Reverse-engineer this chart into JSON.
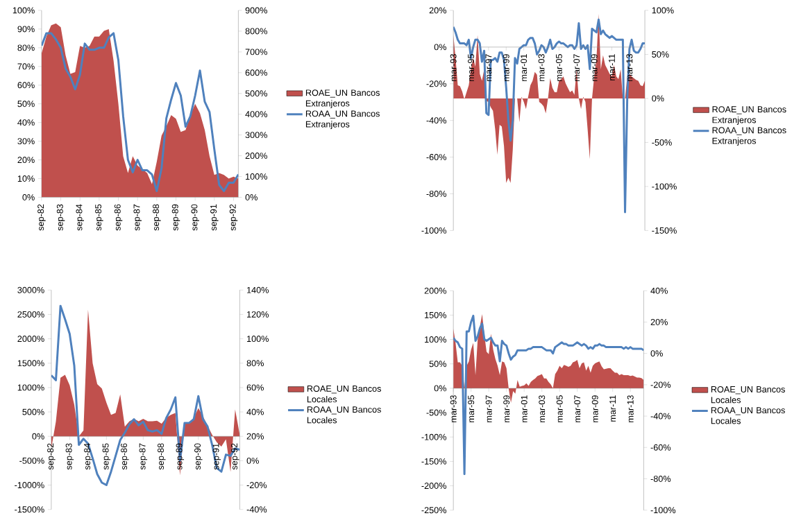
{
  "chart_data": [
    {
      "type": "area",
      "legend": "right",
      "categories": [
        "sep-82",
        null,
        null,
        null,
        "sep-83",
        null,
        null,
        null,
        "sep-84",
        null,
        null,
        null,
        "sep-85",
        null,
        null,
        null,
        "sep-86",
        null,
        null,
        null,
        "sep-87",
        null,
        null,
        null,
        "sep-88",
        null,
        null,
        null,
        "sep-89",
        null,
        null,
        null,
        "sep-90",
        null,
        null,
        null,
        "sep-91",
        null,
        null,
        null,
        "sep-92",
        null
      ],
      "ylim": [
        0,
        100
      ],
      "yticks": [
        {
          "value": 0,
          "label": "0%"
        },
        {
          "value": 10,
          "label": "10%"
        },
        {
          "value": 20,
          "label": "20%"
        },
        {
          "value": 30,
          "label": "30%"
        },
        {
          "value": 40,
          "label": "40%"
        },
        {
          "value": 50,
          "label": "50%"
        },
        {
          "value": 60,
          "label": "60%"
        },
        {
          "value": 70,
          "label": "70%"
        },
        {
          "value": 80,
          "label": "80%"
        },
        {
          "value": 90,
          "label": "90%"
        },
        {
          "value": 100,
          "label": "100%"
        }
      ],
      "y2lim": [
        0,
        900
      ],
      "y2ticks": [
        {
          "value": 0,
          "label": "0%"
        },
        {
          "value": 100,
          "label": "100%"
        },
        {
          "value": 200,
          "label": "200%"
        },
        {
          "value": 300,
          "label": "300%"
        },
        {
          "value": 400,
          "label": "400%"
        },
        {
          "value": 500,
          "label": "500%"
        },
        {
          "value": 600,
          "label": "600%"
        },
        {
          "value": 700,
          "label": "700%"
        },
        {
          "value": 800,
          "label": "800%"
        },
        {
          "value": 900,
          "label": "900%"
        }
      ],
      "series": [
        {
          "name": "ROAE_UN Bancos Extranjeros",
          "color": "#c0504d",
          "values": [
            77,
            86,
            92,
            93,
            91,
            76,
            66,
            67,
            81,
            80,
            81,
            86,
            86,
            89,
            90,
            73,
            50,
            22,
            13,
            22,
            17,
            15,
            13,
            7,
            19,
            33,
            38,
            44,
            42,
            35,
            36,
            44,
            50,
            45,
            36,
            22,
            12,
            13,
            12,
            10,
            11,
            10
          ]
        },
        {
          "name": "ROAA_UN Bancos Extranjeros",
          "type": "line",
          "axis": "y2",
          "color": "#4f81bd",
          "values": [
            730,
            790,
            790,
            760,
            720,
            620,
            580,
            520,
            590,
            740,
            710,
            710,
            720,
            720,
            770,
            790,
            660,
            390,
            180,
            120,
            180,
            130,
            130,
            110,
            30,
            140,
            380,
            470,
            550,
            490,
            340,
            390,
            490,
            610,
            460,
            410,
            230,
            60,
            30,
            70,
            70,
            110
          ]
        }
      ]
    },
    {
      "type": "area",
      "legend": "right",
      "categories": [
        "mar-93",
        null,
        null,
        null,
        null,
        null,
        null,
        null,
        "mar-95",
        null,
        null,
        null,
        null,
        null,
        null,
        null,
        "mar-97",
        null,
        null,
        null,
        null,
        null,
        null,
        null,
        "mar-99",
        null,
        null,
        null,
        null,
        null,
        null,
        null,
        "mar-01",
        null,
        null,
        null,
        null,
        null,
        null,
        null,
        "mar-03",
        null,
        null,
        null,
        null,
        null,
        null,
        null,
        "mar-05",
        null,
        null,
        null,
        null,
        null,
        null,
        null,
        "mar-07",
        null,
        null,
        null,
        null,
        null,
        null,
        null,
        "mar-09",
        null,
        null,
        null,
        null,
        null,
        null,
        null,
        "mar-11",
        null,
        null,
        null,
        null,
        null,
        null,
        null,
        "mar-13",
        null,
        null,
        null,
        null,
        null,
        null,
        null
      ],
      "ylim": [
        -100,
        20
      ],
      "yticks": [
        {
          "value": -100,
          "label": "-100%"
        },
        {
          "value": -80,
          "label": "-80%"
        },
        {
          "value": -60,
          "label": "-60%"
        },
        {
          "value": -40,
          "label": "-40%"
        },
        {
          "value": -20,
          "label": "-20%"
        },
        {
          "value": 0,
          "label": "0%"
        },
        {
          "value": 20,
          "label": "20%"
        }
      ],
      "y2lim": [
        -150,
        100
      ],
      "y2ticks": [
        {
          "value": -150,
          "label": "-150%"
        },
        {
          "value": -100,
          "label": "-100%"
        },
        {
          "value": -50,
          "label": "-50%"
        },
        {
          "value": 0,
          "label": "0%"
        },
        {
          "value": 50,
          "label": "50%"
        },
        {
          "value": 100,
          "label": "100%"
        }
      ],
      "series": [
        {
          "name": "ROAE_UN Bancos Extranjeros",
          "axis": "y2",
          "color": "#c0504d",
          "values": [
            72,
            46,
            15,
            14,
            8,
            -1,
            7,
            15,
            33,
            46,
            36,
            72,
            28,
            20,
            33,
            -3,
            -4,
            -10,
            -14,
            -35,
            -64,
            -30,
            -32,
            -54,
            -96,
            -90,
            -96,
            -58,
            0,
            0,
            -27,
            2,
            -4,
            -12,
            2,
            15,
            20,
            30,
            27,
            -4,
            -6,
            -9,
            -17,
            0,
            23,
            12,
            7,
            7,
            20,
            22,
            25,
            17,
            12,
            7,
            9,
            4,
            33,
            0,
            -12,
            2,
            -4,
            -35,
            -69,
            0,
            25,
            44,
            96,
            33,
            49,
            38,
            33,
            28,
            25,
            38,
            25,
            22,
            33,
            0,
            0,
            25,
            28,
            25,
            23,
            21,
            20,
            15,
            14,
            20
          ]
        },
        {
          "name": "ROAA_UN Bancos Extranjeros",
          "type": "line",
          "color": "#4f81bd",
          "values": [
            11,
            8,
            4,
            2,
            2,
            2,
            1,
            4,
            -6,
            0,
            4,
            4,
            2,
            -8,
            -2,
            -36,
            -37,
            -7,
            -7,
            -6,
            -8,
            -3,
            -3,
            -7,
            -22,
            -40,
            -51,
            -40,
            -6,
            -9,
            -1,
            0,
            1,
            1,
            4,
            5,
            5,
            2,
            -4,
            -2,
            1,
            0,
            -3,
            0,
            4,
            -1,
            0,
            2,
            3,
            2,
            2,
            1,
            0,
            1,
            1,
            -1,
            1,
            13,
            -1,
            1,
            -1,
            1,
            -12,
            10,
            9,
            8,
            15,
            7,
            9,
            7,
            6,
            5,
            6,
            5,
            4,
            4,
            4,
            4,
            -90,
            -28,
            -1,
            4,
            -2,
            -3,
            -3,
            -1,
            2,
            2
          ]
        }
      ]
    },
    {
      "type": "area",
      "legend": "right",
      "categories": [
        "sep-82",
        null,
        null,
        null,
        "sep-83",
        null,
        null,
        null,
        "sep-84",
        null,
        null,
        null,
        "sep-85",
        null,
        null,
        null,
        "sep-86",
        null,
        null,
        null,
        "sep-87",
        null,
        null,
        null,
        "sep-88",
        null,
        null,
        null,
        "sep-89",
        null,
        null,
        null,
        "sep-90",
        null,
        null,
        null,
        "sep-91",
        null,
        null,
        null,
        "sep-92",
        null
      ],
      "ylim": [
        -1500,
        3000
      ],
      "yticks": [
        {
          "value": -1500,
          "label": "-1500%"
        },
        {
          "value": -1000,
          "label": "-1000%"
        },
        {
          "value": -500,
          "label": "-500%"
        },
        {
          "value": 0,
          "label": "0%"
        },
        {
          "value": 500,
          "label": "500%"
        },
        {
          "value": 1000,
          "label": "1000%"
        },
        {
          "value": 1500,
          "label": "1500%"
        },
        {
          "value": 2000,
          "label": "2000%"
        },
        {
          "value": 2500,
          "label": "2500%"
        },
        {
          "value": 3000,
          "label": "3000%"
        }
      ],
      "y2lim": [
        -40,
        140
      ],
      "y2ticks": [
        {
          "value": -40,
          "label": "-40%"
        },
        {
          "value": -20,
          "label": "-20%"
        },
        {
          "value": 0,
          "label": "0%"
        },
        {
          "value": 20,
          "label": "20%"
        },
        {
          "value": 40,
          "label": "40%"
        },
        {
          "value": 60,
          "label": "60%"
        },
        {
          "value": 80,
          "label": "80%"
        },
        {
          "value": 100,
          "label": "100%"
        },
        {
          "value": 120,
          "label": "120%"
        },
        {
          "value": 140,
          "label": "140%"
        }
      ],
      "series": [
        {
          "name": "ROAE_UN Bancos Locales",
          "color": "#c0504d",
          "values": [
            -250,
            300,
            1200,
            1260,
            1050,
            650,
            0,
            120,
            2600,
            1500,
            1070,
            980,
            690,
            440,
            480,
            860,
            200,
            310,
            360,
            310,
            360,
            310,
            310,
            320,
            260,
            380,
            440,
            480,
            -800,
            260,
            290,
            380,
            580,
            410,
            220,
            30,
            -120,
            -210,
            -60,
            -730,
            550,
            30
          ]
        },
        {
          "name": "ROAA_UN Bancos Locales",
          "type": "line",
          "axis": "y2",
          "color": "#4f81bd",
          "values": [
            70,
            66,
            127,
            116,
            104,
            78,
            13,
            18,
            14,
            2,
            -11,
            -18,
            -20,
            -9,
            4,
            17,
            23,
            30,
            34,
            29,
            32,
            25,
            24,
            25,
            22,
            35,
            42,
            52,
            0,
            31,
            31,
            34,
            53,
            34,
            28,
            13,
            -6,
            -9,
            5,
            4,
            10,
            9
          ]
        }
      ]
    },
    {
      "type": "area",
      "legend": "right",
      "categories": [
        "mar-93",
        null,
        null,
        null,
        null,
        null,
        null,
        null,
        "mar-95",
        null,
        null,
        null,
        null,
        null,
        null,
        null,
        "mar-97",
        null,
        null,
        null,
        null,
        null,
        null,
        null,
        "mar-99",
        null,
        null,
        null,
        null,
        null,
        null,
        null,
        "mar-01",
        null,
        null,
        null,
        null,
        null,
        null,
        null,
        "mar-03",
        null,
        null,
        null,
        null,
        null,
        null,
        null,
        "mar-05",
        null,
        null,
        null,
        null,
        null,
        null,
        null,
        "mar-07",
        null,
        null,
        null,
        null,
        null,
        null,
        null,
        "mar-09",
        null,
        null,
        null,
        null,
        null,
        null,
        null,
        "mar-11",
        null,
        null,
        null,
        null,
        null,
        null,
        null,
        "mar-13",
        null,
        null,
        null,
        null,
        null,
        null
      ],
      "ylim": [
        -250,
        200
      ],
      "yticks": [
        {
          "value": -250,
          "label": "-250%"
        },
        {
          "value": -200,
          "label": "-200%"
        },
        {
          "value": -150,
          "label": "-150%"
        },
        {
          "value": -100,
          "label": "-100%"
        },
        {
          "value": -50,
          "label": "-50%"
        },
        {
          "value": 0,
          "label": "0%"
        },
        {
          "value": 50,
          "label": "50%"
        },
        {
          "value": 100,
          "label": "100%"
        },
        {
          "value": 150,
          "label": "150%"
        },
        {
          "value": 200,
          "label": "200%"
        }
      ],
      "y2lim": [
        -100,
        40
      ],
      "y2ticks": [
        {
          "value": -100,
          "label": "-100%"
        },
        {
          "value": -80,
          "label": "-80%"
        },
        {
          "value": -60,
          "label": "-60%"
        },
        {
          "value": -40,
          "label": "-40%"
        },
        {
          "value": -20,
          "label": "-20%"
        },
        {
          "value": 0,
          "label": "0%"
        },
        {
          "value": 20,
          "label": "20%"
        },
        {
          "value": 40,
          "label": "40%"
        }
      ],
      "series": [
        {
          "name": "ROAE_UN Bancos Locales",
          "color": "#c0504d",
          "values": [
            122,
            93,
            53,
            53,
            46,
            0,
            46,
            55,
            79,
            93,
            27,
            100,
            126,
            152,
            110,
            75,
            70,
            112,
            79,
            60,
            46,
            27,
            55,
            53,
            41,
            -1,
            -30,
            -6,
            -11,
            17,
            3,
            5,
            6,
            10,
            5,
            13,
            17,
            20,
            25,
            27,
            29,
            20,
            20,
            13,
            8,
            0,
            29,
            36,
            46,
            41,
            48,
            46,
            44,
            46,
            53,
            55,
            58,
            41,
            51,
            53,
            36,
            46,
            32,
            46,
            51,
            53,
            55,
            45,
            39,
            40,
            41,
            41,
            36,
            32,
            32,
            27,
            29,
            27,
            27,
            27,
            25,
            26,
            24,
            22,
            22,
            21,
            17
          ]
        },
        {
          "name": "ROAA_UN Bancos Locales",
          "type": "line",
          "axis": "y2",
          "color": "#4f81bd",
          "values": [
            10,
            8,
            7,
            4,
            3,
            -77,
            14,
            14,
            20,
            24,
            8,
            11,
            16,
            19,
            9,
            8,
            9,
            10,
            7,
            5,
            5,
            -5,
            8,
            6,
            5,
            0,
            -4,
            -2,
            -1,
            2,
            2,
            2,
            2,
            2,
            3,
            3,
            4,
            4,
            4,
            4,
            4,
            3,
            2,
            2,
            2,
            0,
            4,
            5,
            6,
            7,
            6,
            6,
            5,
            5,
            5,
            6,
            7,
            6,
            5,
            6,
            5,
            3,
            4,
            3,
            5,
            5,
            6,
            5,
            5,
            4,
            4,
            4,
            4,
            4,
            4,
            4,
            4,
            3,
            4,
            3,
            4,
            3,
            3,
            3,
            3,
            3,
            2
          ]
        }
      ]
    }
  ]
}
